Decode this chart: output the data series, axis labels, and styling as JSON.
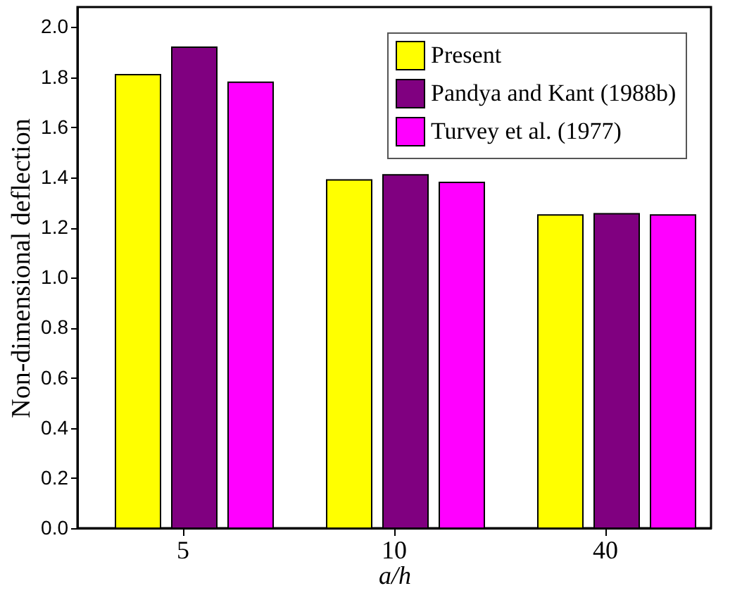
{
  "chart_data": {
    "type": "bar",
    "xlabel": "a/h",
    "ylabel": "Non-dimensional deflection",
    "categories": [
      "5",
      "10",
      "40"
    ],
    "series": [
      {
        "name": "Present",
        "color": "#ffff00",
        "values": [
          1.81,
          1.39,
          1.25
        ]
      },
      {
        "name": "Pandya and Kant (1988b)",
        "color": "#800080",
        "values": [
          1.92,
          1.41,
          1.255
        ]
      },
      {
        "name": "Turvey et al. (1977)",
        "color": "#ff00ff",
        "values": [
          1.78,
          1.38,
          1.25
        ]
      }
    ],
    "ylim": [
      0,
      2.08
    ],
    "yticks": [
      {
        "value": 0,
        "label": "0.0"
      },
      0.2,
      0.4,
      0.6,
      0.8,
      {
        "value": 1,
        "label": "1.0"
      },
      1.2,
      1.4,
      1.6,
      1.8,
      {
        "value": 2,
        "label": "2.0"
      }
    ],
    "grid": false,
    "legend": "top right"
  }
}
